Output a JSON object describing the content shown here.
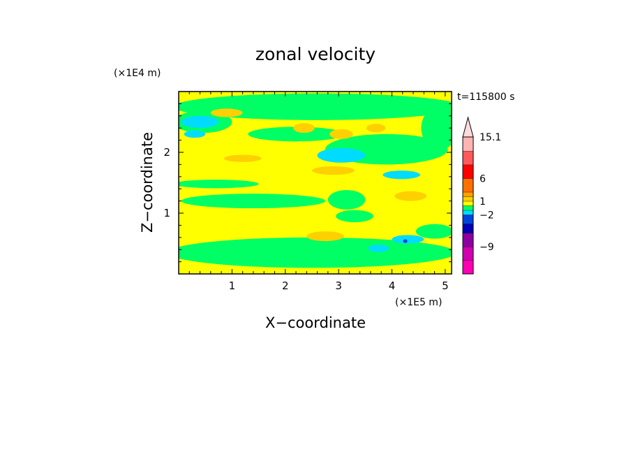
{
  "chart_data": {
    "type": "heatmap",
    "title": "zonal velocity",
    "xlabel": "X−coordinate",
    "ylabel": "Z−coordinate",
    "x_unit": "(×1E5 m)",
    "y_unit": "(×1E4 m)",
    "time_label": "t=115800 s",
    "xlim": [
      0,
      5.12
    ],
    "ylim": [
      0,
      3.0
    ],
    "x_ticks": [
      "1",
      "2",
      "3",
      "4",
      "5"
    ],
    "y_ticks": [
      "1",
      "2"
    ],
    "colorbar": {
      "labels": [
        "15.1",
        "6",
        "1",
        "−2",
        "−9"
      ],
      "label_values": [
        15.1,
        6,
        1,
        -2,
        -9
      ],
      "bands": [
        {
          "lo": -15,
          "hi": -12,
          "color": "#ff00b4"
        },
        {
          "lo": -12,
          "hi": -9,
          "color": "#d000b0"
        },
        {
          "lo": -9,
          "hi": -6,
          "color": "#8c00a0"
        },
        {
          "lo": -6,
          "hi": -4,
          "color": "#0000b4"
        },
        {
          "lo": -4,
          "hi": -2,
          "color": "#0044dd"
        },
        {
          "lo": -2,
          "hi": -1,
          "color": "#00dcff"
        },
        {
          "lo": -1,
          "hi": 0,
          "color": "#00ff64"
        },
        {
          "lo": 0,
          "hi": 1,
          "color": "#ffff00"
        },
        {
          "lo": 1,
          "hi": 2,
          "color": "#ffd000"
        },
        {
          "lo": 2,
          "hi": 3,
          "color": "#ffa000"
        },
        {
          "lo": 3,
          "hi": 6,
          "color": "#ff7000"
        },
        {
          "lo": 6,
          "hi": 9,
          "color": "#ff0000"
        },
        {
          "lo": 9,
          "hi": 12,
          "color": "#ff5a5a"
        },
        {
          "lo": 12,
          "hi": 15.1,
          "color": "#ffb4b4"
        },
        {
          "lo": 15.1,
          "hi": 18,
          "color": "#ffdcdc"
        }
      ]
    },
    "field_patches": [
      {
        "level": 0.5,
        "shape": "rect",
        "x": [
          0,
          5.12
        ],
        "y": [
          0,
          3.0
        ]
      },
      {
        "level": -0.5,
        "shape": "ellipse",
        "cx": 2.6,
        "cy": 2.75,
        "rx": 2.7,
        "ry": 0.22
      },
      {
        "level": -0.5,
        "shape": "ellipse",
        "cx": 0.45,
        "cy": 2.5,
        "rx": 0.55,
        "ry": 0.18
      },
      {
        "level": -0.5,
        "shape": "ellipse",
        "cx": 4.9,
        "cy": 2.4,
        "rx": 0.35,
        "ry": 0.35
      },
      {
        "level": -0.5,
        "shape": "ellipse",
        "cx": 2.2,
        "cy": 2.3,
        "rx": 0.9,
        "ry": 0.12
      },
      {
        "level": -0.5,
        "shape": "ellipse",
        "cx": 3.9,
        "cy": 2.05,
        "rx": 1.15,
        "ry": 0.25
      },
      {
        "level": -0.5,
        "shape": "ellipse",
        "cx": 0.7,
        "cy": 1.48,
        "rx": 0.8,
        "ry": 0.07
      },
      {
        "level": -0.5,
        "shape": "ellipse",
        "cx": 1.4,
        "cy": 1.2,
        "rx": 1.35,
        "ry": 0.12
      },
      {
        "level": -0.5,
        "shape": "ellipse",
        "cx": 3.15,
        "cy": 1.22,
        "rx": 0.35,
        "ry": 0.16
      },
      {
        "level": -0.5,
        "shape": "ellipse",
        "cx": 2.5,
        "cy": 0.35,
        "rx": 2.7,
        "ry": 0.25
      },
      {
        "level": -0.5,
        "shape": "ellipse",
        "cx": 4.8,
        "cy": 0.7,
        "rx": 0.35,
        "ry": 0.12
      },
      {
        "level": -0.5,
        "shape": "ellipse",
        "cx": 3.3,
        "cy": 0.95,
        "rx": 0.35,
        "ry": 0.1
      },
      {
        "level": -1.5,
        "shape": "ellipse",
        "cx": 0.4,
        "cy": 2.5,
        "rx": 0.35,
        "ry": 0.1
      },
      {
        "level": -1.5,
        "shape": "ellipse",
        "cx": 0.3,
        "cy": 2.3,
        "rx": 0.2,
        "ry": 0.06
      },
      {
        "level": -1.5,
        "shape": "ellipse",
        "cx": 3.05,
        "cy": 1.95,
        "rx": 0.45,
        "ry": 0.12
      },
      {
        "level": -1.5,
        "shape": "ellipse",
        "cx": 4.18,
        "cy": 1.63,
        "rx": 0.35,
        "ry": 0.07
      },
      {
        "level": -1.5,
        "shape": "ellipse",
        "cx": 4.3,
        "cy": 0.57,
        "rx": 0.3,
        "ry": 0.07
      },
      {
        "level": -1.5,
        "shape": "ellipse",
        "cx": 3.75,
        "cy": 0.42,
        "rx": 0.2,
        "ry": 0.06
      },
      {
        "level": -3.0,
        "shape": "ellipse",
        "cx": 4.25,
        "cy": 0.54,
        "rx": 0.04,
        "ry": 0.03
      },
      {
        "level": 1.5,
        "shape": "ellipse",
        "cx": 0.9,
        "cy": 2.65,
        "rx": 0.3,
        "ry": 0.07
      },
      {
        "level": 1.5,
        "shape": "ellipse",
        "cx": 2.35,
        "cy": 2.4,
        "rx": 0.2,
        "ry": 0.08
      },
      {
        "level": 1.5,
        "shape": "ellipse",
        "cx": 3.05,
        "cy": 2.3,
        "rx": 0.22,
        "ry": 0.08
      },
      {
        "level": 1.5,
        "shape": "ellipse",
        "cx": 3.7,
        "cy": 2.4,
        "rx": 0.18,
        "ry": 0.07
      },
      {
        "level": 1.5,
        "shape": "ellipse",
        "cx": 1.2,
        "cy": 1.9,
        "rx": 0.35,
        "ry": 0.06
      },
      {
        "level": 1.5,
        "shape": "ellipse",
        "cx": 2.9,
        "cy": 1.7,
        "rx": 0.4,
        "ry": 0.07
      },
      {
        "level": 1.5,
        "shape": "ellipse",
        "cx": 4.35,
        "cy": 1.28,
        "rx": 0.3,
        "ry": 0.08
      },
      {
        "level": 1.5,
        "shape": "ellipse",
        "cx": 2.75,
        "cy": 0.62,
        "rx": 0.35,
        "ry": 0.08
      }
    ]
  }
}
